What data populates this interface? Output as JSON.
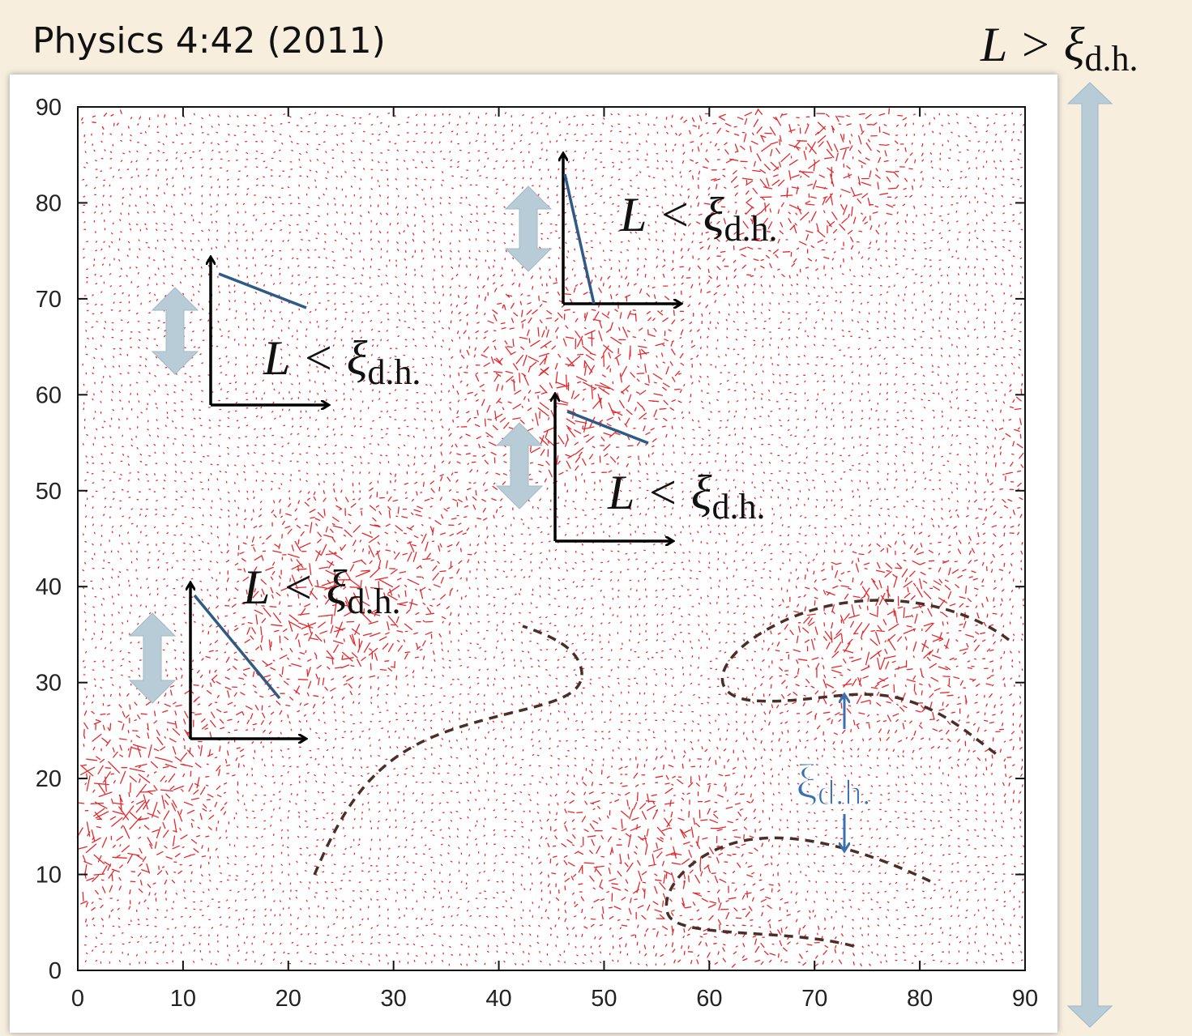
{
  "header": {
    "citation": "Physics 4:42 (2011)",
    "claim": {
      "text": "L > ξ",
      "sub": "d.h."
    }
  },
  "plot": {
    "xticks": [
      "0",
      "10",
      "20",
      "30",
      "40",
      "50",
      "60",
      "70",
      "80",
      "90"
    ],
    "yticks": [
      "0",
      "10",
      "20",
      "30",
      "40",
      "50",
      "60",
      "70",
      "80",
      "90"
    ]
  },
  "annotations": [
    {
      "text": "L < ξ",
      "sub": "d.h."
    },
    {
      "text": "L < ξ",
      "sub": "d.h."
    },
    {
      "text": "L < ξ",
      "sub": "d.h."
    },
    {
      "text": "L < ξ",
      "sub": "d.h."
    }
  ],
  "length_label": {
    "text": "ξ",
    "sub": "d.h."
  }
}
